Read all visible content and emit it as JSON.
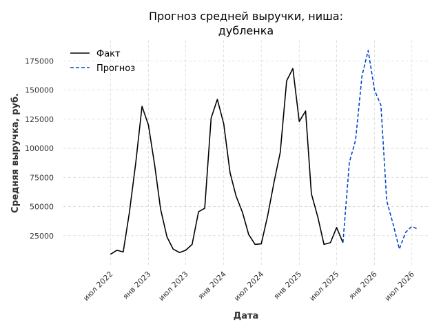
{
  "chart_data": {
    "type": "line",
    "title_lines": [
      "Прогноз средней выручки, ниша:",
      "дубленка"
    ],
    "xlabel": "Дата",
    "ylabel": "Средняя выручка, руб.",
    "ylim": [
      0,
      193000
    ],
    "xlim": [
      "2021-11-15",
      "2026-09-20"
    ],
    "y_ticks": [
      25000,
      50000,
      75000,
      100000,
      125000,
      150000,
      175000
    ],
    "x_ticks": [
      {
        "date": "2022-07-01",
        "label": "июл 2022"
      },
      {
        "date": "2023-01-01",
        "label": "янв 2023"
      },
      {
        "date": "2023-07-01",
        "label": "июл 2023"
      },
      {
        "date": "2024-01-01",
        "label": "янв 2024"
      },
      {
        "date": "2024-07-01",
        "label": "июл 2024"
      },
      {
        "date": "2025-01-01",
        "label": "янв 2025"
      },
      {
        "date": "2025-07-01",
        "label": "июл 2025"
      },
      {
        "date": "2026-01-01",
        "label": "янв 2026"
      },
      {
        "date": "2026-07-01",
        "label": "июл 2026"
      }
    ],
    "grid": true,
    "legend_position": "top-left",
    "series": [
      {
        "name": "Факт",
        "style": "solid",
        "color": "#000000",
        "x": [
          "2022-07-01",
          "2022-08-01",
          "2022-09-01",
          "2022-10-01",
          "2022-11-01",
          "2022-12-01",
          "2023-01-01",
          "2023-02-01",
          "2023-03-01",
          "2023-04-01",
          "2023-05-01",
          "2023-06-01",
          "2023-07-01",
          "2023-08-01",
          "2023-09-01",
          "2023-10-01",
          "2023-11-01",
          "2023-12-01",
          "2024-01-01",
          "2024-02-01",
          "2024-03-01",
          "2024-04-01",
          "2024-05-01",
          "2024-06-01",
          "2024-07-01",
          "2024-08-01",
          "2024-09-01",
          "2024-10-01",
          "2024-11-01",
          "2024-12-01",
          "2025-01-01",
          "2025-02-01",
          "2025-03-01",
          "2025-04-01",
          "2025-05-01",
          "2025-06-01",
          "2025-07-01",
          "2025-08-01"
        ],
        "values": [
          9000,
          12500,
          11000,
          45000,
          88000,
          136000,
          120000,
          85000,
          48000,
          24000,
          13500,
          10500,
          12500,
          17500,
          45500,
          48500,
          126000,
          142000,
          121000,
          79000,
          59000,
          45000,
          26000,
          17500,
          18000,
          42000,
          71000,
          96500,
          158000,
          168500,
          123000,
          132000,
          61000,
          41000,
          17500,
          19000,
          32000,
          19000
        ]
      },
      {
        "name": "Прогноз",
        "style": "dashed",
        "color": "#0044cc",
        "x": [
          "2025-08-01",
          "2025-09-01",
          "2025-10-01",
          "2025-11-01",
          "2025-12-01",
          "2026-01-01",
          "2026-02-01",
          "2026-03-01",
          "2026-04-01",
          "2026-05-01",
          "2026-06-01",
          "2026-07-01",
          "2026-08-01"
        ],
        "values": [
          19000,
          88000,
          107000,
          162000,
          184000,
          150000,
          137000,
          55000,
          35000,
          13500,
          28000,
          33000,
          30500
        ]
      }
    ]
  }
}
